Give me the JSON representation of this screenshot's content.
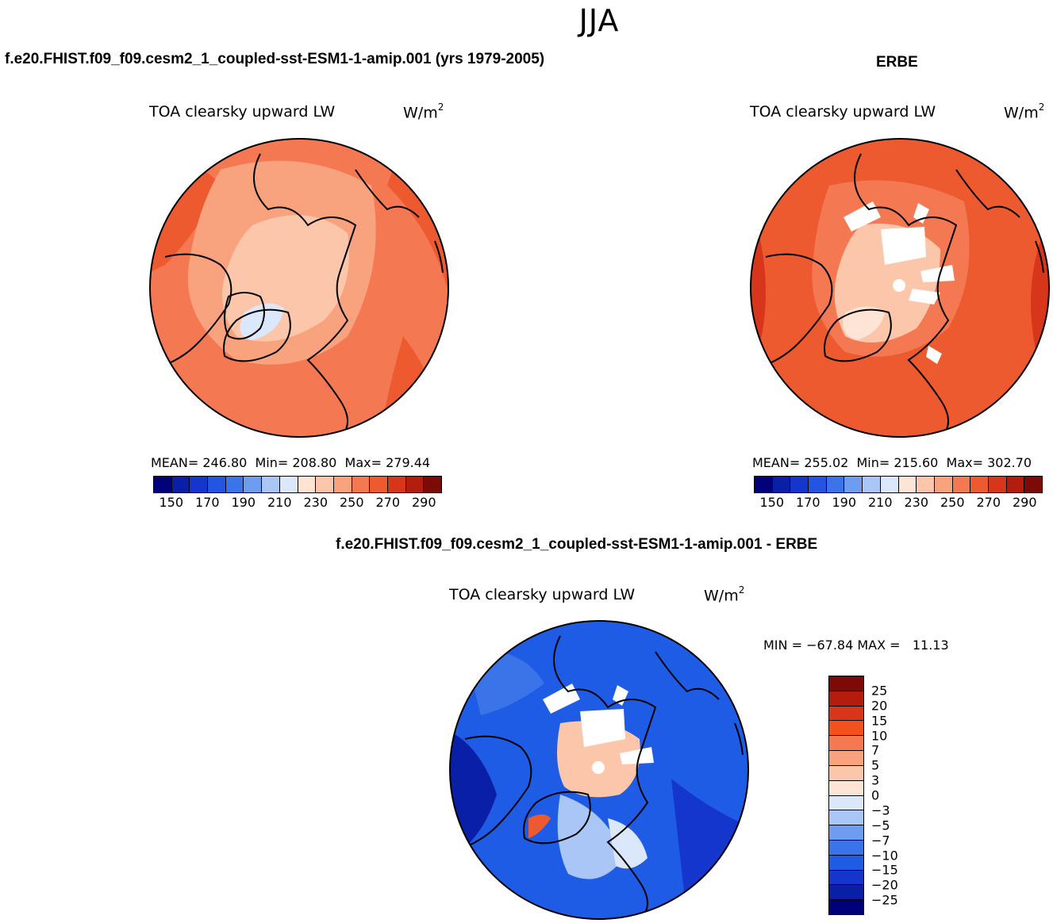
{
  "figure": {
    "season": "JJA",
    "bottom_title": "f.e20.FHIST.f09_f09.cesm2_1_coupled-sst-ESM1-1-amip.001 - ERBE"
  },
  "panels": [
    {
      "case_title": "f.e20.FHIST.f09_f09.cesm2_1_coupled-sst-ESM1-1-amip.001 (yrs 1979-2005)",
      "title": "TOA clearsky upward LW",
      "units_base": "W/m",
      "units_exp": "2",
      "stats": [
        {
          "label": "MEAN=",
          "value": "246.80"
        },
        {
          "label": "Min=",
          "value": "208.80"
        },
        {
          "label": "Max=",
          "value": "279.44"
        }
      ]
    },
    {
      "case_title": "ERBE",
      "title": "TOA clearsky upward LW",
      "units_base": "W/m",
      "units_exp": "2",
      "stats": [
        {
          "label": "MEAN=",
          "value": "255.02"
        },
        {
          "label": "Min=",
          "value": "215.60"
        },
        {
          "label": "Max=",
          "value": "302.70"
        }
      ]
    }
  ],
  "diff_panel": {
    "title": "TOA clearsky upward LW",
    "units_base": "W/m",
    "units_exp": "2",
    "minmax": "MIN = −67.84 MAX =   11.13"
  },
  "abs_colorbar": {
    "colors": [
      "#00007a",
      "#0a1fa8",
      "#1536cc",
      "#2455e0",
      "#3b74e8",
      "#6d9cf0",
      "#a9c6f6",
      "#dbe8fb",
      "#fde4d4",
      "#fcc6aa",
      "#f9a27e",
      "#f47953",
      "#ee5a2f",
      "#d8361b",
      "#b21d0e",
      "#7c0a06"
    ],
    "tick_labels": [
      "150",
      "170",
      "190",
      "210",
      "230",
      "250",
      "270",
      "290"
    ]
  },
  "diff_colorbar": {
    "colors_top_to_bottom": [
      "#7c0a06",
      "#b21d0e",
      "#d8361b",
      "#f2501c",
      "#f47953",
      "#f9a27e",
      "#fcc6aa",
      "#fde4d4",
      "#dbe8fb",
      "#a9c6f6",
      "#6d9cf0",
      "#3b74e8",
      "#1f5ce6",
      "#1536cc",
      "#0a1fa8",
      "#00007a"
    ],
    "tick_labels": [
      "25",
      "20",
      "15",
      "10",
      "7",
      "5",
      "3",
      "0",
      "−3",
      "−5",
      "−7",
      "−10",
      "−15",
      "−20",
      "−25"
    ]
  },
  "map_colors": {
    "abs_background_1": "#f47953",
    "abs_outer_1": "#ee5a2f",
    "abs_mid_1": "#f9a27e",
    "abs_inner_1": "#fcc6aa",
    "abs_ice_1": "#dbe8fb",
    "abs_background_2": "#ee5a2f",
    "abs_outer_2": "#d8361b",
    "abs_mid_2": "#f47953",
    "abs_inner_2": "#fde4d4",
    "diff_background": "#1f5ce6",
    "diff_deep": "#0a1fa8",
    "diff_light": "#a9c6f6",
    "diff_pale": "#dbe8fb",
    "diff_warm": "#fcc6aa",
    "diff_hot": "#ee5a2f",
    "missing": "#ffffff",
    "coast": "#000000"
  }
}
